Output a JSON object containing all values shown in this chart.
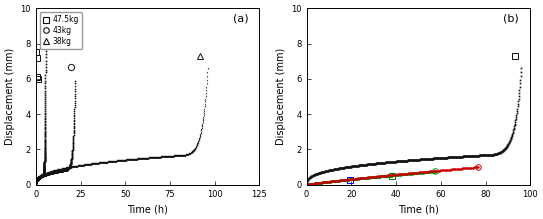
{
  "fig_width": 5.43,
  "fig_height": 2.19,
  "dpi": 100,
  "background_color": "#ffffff",
  "subplot_a": {
    "label": "(a)",
    "xlim": [
      0,
      125
    ],
    "ylim": [
      0,
      10
    ],
    "xlabel": "Time (h)",
    "ylabel": "Displacement (mm)",
    "xticks": [
      0,
      25,
      50,
      75,
      100,
      125
    ],
    "yticks": [
      0,
      2,
      4,
      6,
      8,
      10
    ],
    "series": [
      {
        "label": "47.5kg",
        "marker": "s",
        "color": "#111111",
        "t_rupture": 5.5,
        "t_secondary_end": 4.2,
        "d_secondary_end": 0.55,
        "max_disp": 7.8,
        "outliers": [
          [
            0.3,
            7.5
          ],
          [
            0.5,
            7.2
          ],
          [
            0.8,
            6.1
          ],
          [
            1.0,
            6.0
          ]
        ]
      },
      {
        "label": "43kg",
        "marker": "o",
        "color": "#111111",
        "t_rupture": 22,
        "t_secondary_end": 17.5,
        "d_secondary_end": 0.85,
        "max_disp": 5.9,
        "outliers": [
          [
            19.5,
            6.65
          ]
        ]
      },
      {
        "label": "38kg",
        "marker": "^",
        "color": "#111111",
        "t_rupture": 96,
        "t_secondary_end": 83,
        "d_secondary_end": 1.7,
        "max_disp": 6.6,
        "outliers": [
          [
            91.5,
            7.3
          ]
        ]
      }
    ],
    "legend": {
      "labels": [
        "47.5kg",
        "43kg",
        "38kg"
      ],
      "markers": [
        "s",
        "o",
        "^"
      ],
      "fontsize": 5.5
    }
  },
  "subplot_b": {
    "label": "(b)",
    "xlim": [
      0,
      100
    ],
    "ylim": [
      0,
      10
    ],
    "xlabel": "Time (h)",
    "ylabel": "Displacement (mm)",
    "xticks": [
      0,
      20,
      40,
      60,
      80,
      100
    ],
    "yticks": [
      0,
      2,
      4,
      6,
      8,
      10
    ],
    "main_curve": {
      "marker": "s",
      "color": "#111111",
      "t_rupture": 96,
      "t_secondary_end": 83,
      "d_secondary_end": 1.7,
      "max_disp": 6.6,
      "outliers": [
        [
          93,
          7.3
        ]
      ]
    },
    "interrupted": [
      {
        "t_end": 19.2,
        "final_d": 0.25,
        "color": "#0000dd",
        "marker": "s"
      },
      {
        "t_end": 38.4,
        "final_d": 0.47,
        "color": "#007700",
        "marker": "s"
      },
      {
        "t_end": 57.6,
        "final_d": 0.75,
        "color": "#009900",
        "marker": "o"
      },
      {
        "t_end": 76.8,
        "final_d": 1.0,
        "color": "#cc0000",
        "marker": "o"
      }
    ]
  }
}
